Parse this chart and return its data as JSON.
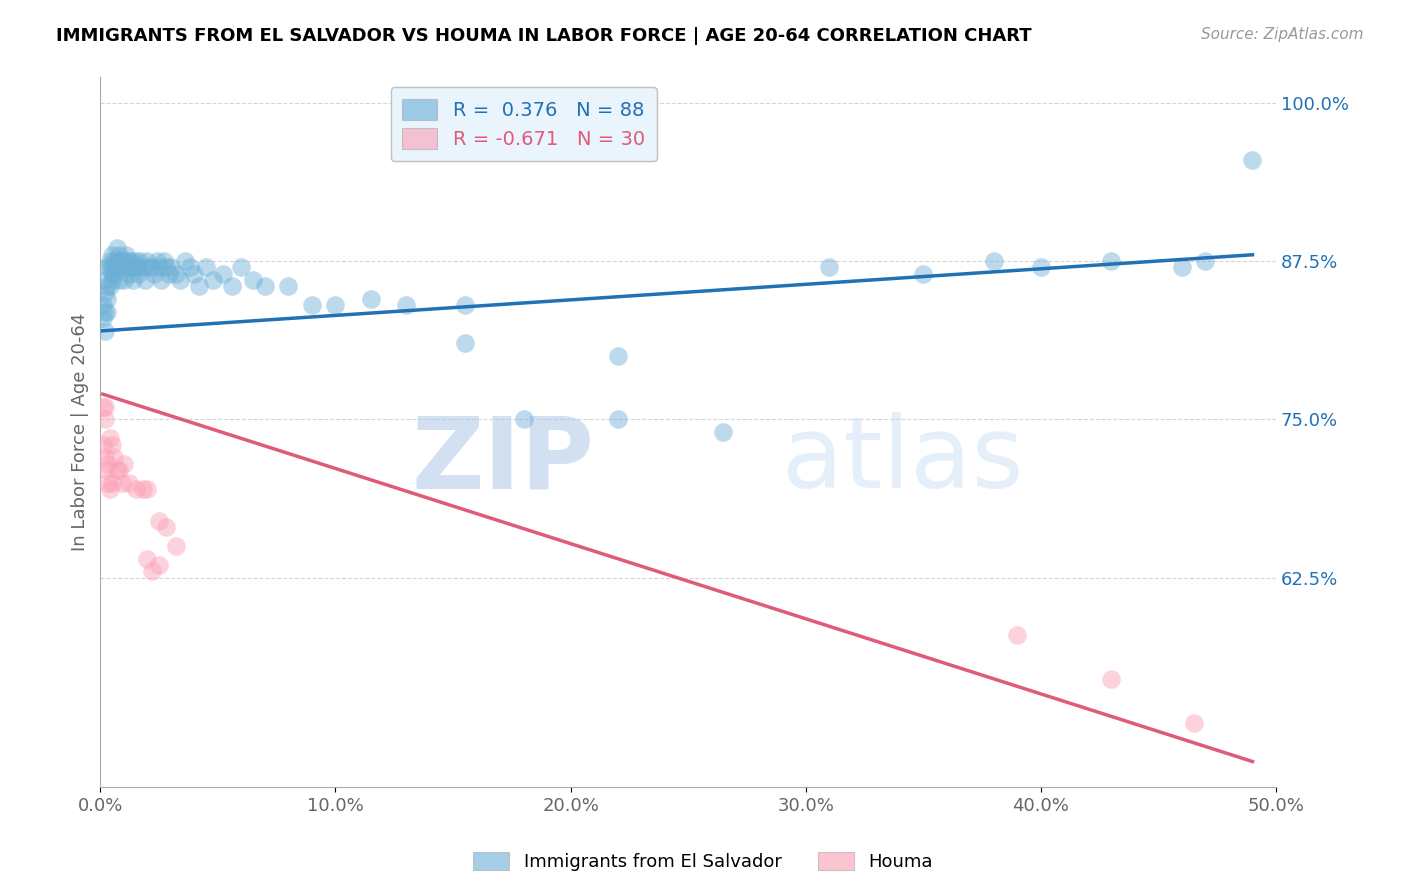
{
  "title": "IMMIGRANTS FROM EL SALVADOR VS HOUMA IN LABOR FORCE | AGE 20-64 CORRELATION CHART",
  "source": "Source: ZipAtlas.com",
  "ylabel": "In Labor Force | Age 20-64",
  "blue_R": 0.376,
  "blue_N": 88,
  "pink_R": -0.671,
  "pink_N": 30,
  "xlim": [
    0.0,
    0.5
  ],
  "ylim": [
    0.46,
    1.02
  ],
  "yticks": [
    0.625,
    0.75,
    0.875,
    1.0
  ],
  "ytick_labels": [
    "62.5%",
    "75.0%",
    "87.5%",
    "100.0%"
  ],
  "xticks": [
    0.0,
    0.1,
    0.2,
    0.3,
    0.4,
    0.5
  ],
  "xtick_labels": [
    "0.0%",
    "10.0%",
    "20.0%",
    "30.0%",
    "40.0%",
    "50.0%"
  ],
  "blue_color": "#6baed6",
  "pink_color": "#fa9fb5",
  "blue_line_color": "#2171b5",
  "pink_line_color": "#e05a7a",
  "watermark_zip": "ZIP",
  "watermark_atlas": "atlas",
  "legend_box_color": "#e8f4fc",
  "blue_scatter_x": [
    0.001,
    0.001,
    0.002,
    0.002,
    0.002,
    0.002,
    0.003,
    0.003,
    0.003,
    0.003,
    0.004,
    0.004,
    0.004,
    0.005,
    0.005,
    0.005,
    0.005,
    0.006,
    0.006,
    0.006,
    0.007,
    0.007,
    0.007,
    0.008,
    0.008,
    0.008,
    0.009,
    0.009,
    0.01,
    0.01,
    0.011,
    0.011,
    0.012,
    0.012,
    0.013,
    0.013,
    0.014,
    0.014,
    0.015,
    0.015,
    0.016,
    0.016,
    0.017,
    0.018,
    0.019,
    0.02,
    0.021,
    0.022,
    0.023,
    0.024,
    0.025,
    0.026,
    0.027,
    0.028,
    0.029,
    0.03,
    0.032,
    0.034,
    0.036,
    0.038,
    0.04,
    0.042,
    0.045,
    0.048,
    0.052,
    0.056,
    0.06,
    0.065,
    0.07,
    0.08,
    0.09,
    0.1,
    0.115,
    0.13,
    0.155,
    0.18,
    0.22,
    0.265,
    0.155,
    0.22,
    0.31,
    0.35,
    0.38,
    0.4,
    0.43,
    0.46,
    0.47,
    0.49
  ],
  "blue_scatter_y": [
    0.84,
    0.83,
    0.85,
    0.86,
    0.835,
    0.82,
    0.855,
    0.87,
    0.845,
    0.835,
    0.875,
    0.87,
    0.855,
    0.88,
    0.865,
    0.87,
    0.86,
    0.875,
    0.87,
    0.865,
    0.885,
    0.875,
    0.87,
    0.875,
    0.88,
    0.86,
    0.875,
    0.87,
    0.875,
    0.86,
    0.88,
    0.87,
    0.875,
    0.865,
    0.875,
    0.87,
    0.87,
    0.86,
    0.875,
    0.87,
    0.865,
    0.87,
    0.875,
    0.87,
    0.86,
    0.875,
    0.87,
    0.87,
    0.865,
    0.875,
    0.87,
    0.86,
    0.875,
    0.87,
    0.865,
    0.87,
    0.865,
    0.86,
    0.875,
    0.87,
    0.865,
    0.855,
    0.87,
    0.86,
    0.865,
    0.855,
    0.87,
    0.86,
    0.855,
    0.855,
    0.84,
    0.84,
    0.845,
    0.84,
    0.84,
    0.75,
    0.75,
    0.74,
    0.81,
    0.8,
    0.87,
    0.865,
    0.875,
    0.87,
    0.875,
    0.87,
    0.875,
    0.955
  ],
  "pink_scatter_x": [
    0.001,
    0.001,
    0.002,
    0.002,
    0.002,
    0.003,
    0.003,
    0.003,
    0.004,
    0.004,
    0.005,
    0.005,
    0.006,
    0.007,
    0.008,
    0.009,
    0.01,
    0.012,
    0.015,
    0.018,
    0.02,
    0.025,
    0.028,
    0.032,
    0.02,
    0.022,
    0.025,
    0.39,
    0.43,
    0.465
  ],
  "pink_scatter_y": [
    0.76,
    0.73,
    0.76,
    0.72,
    0.75,
    0.715,
    0.71,
    0.7,
    0.735,
    0.695,
    0.73,
    0.7,
    0.72,
    0.71,
    0.71,
    0.7,
    0.715,
    0.7,
    0.695,
    0.695,
    0.695,
    0.67,
    0.665,
    0.65,
    0.64,
    0.63,
    0.635,
    0.58,
    0.545,
    0.51
  ],
  "blue_line_x0": 0.001,
  "blue_line_x1": 0.49,
  "blue_line_y0": 0.82,
  "blue_line_y1": 0.88,
  "pink_line_x0": 0.001,
  "pink_line_x1": 0.49,
  "pink_line_y0": 0.77,
  "pink_line_y1": 0.48
}
